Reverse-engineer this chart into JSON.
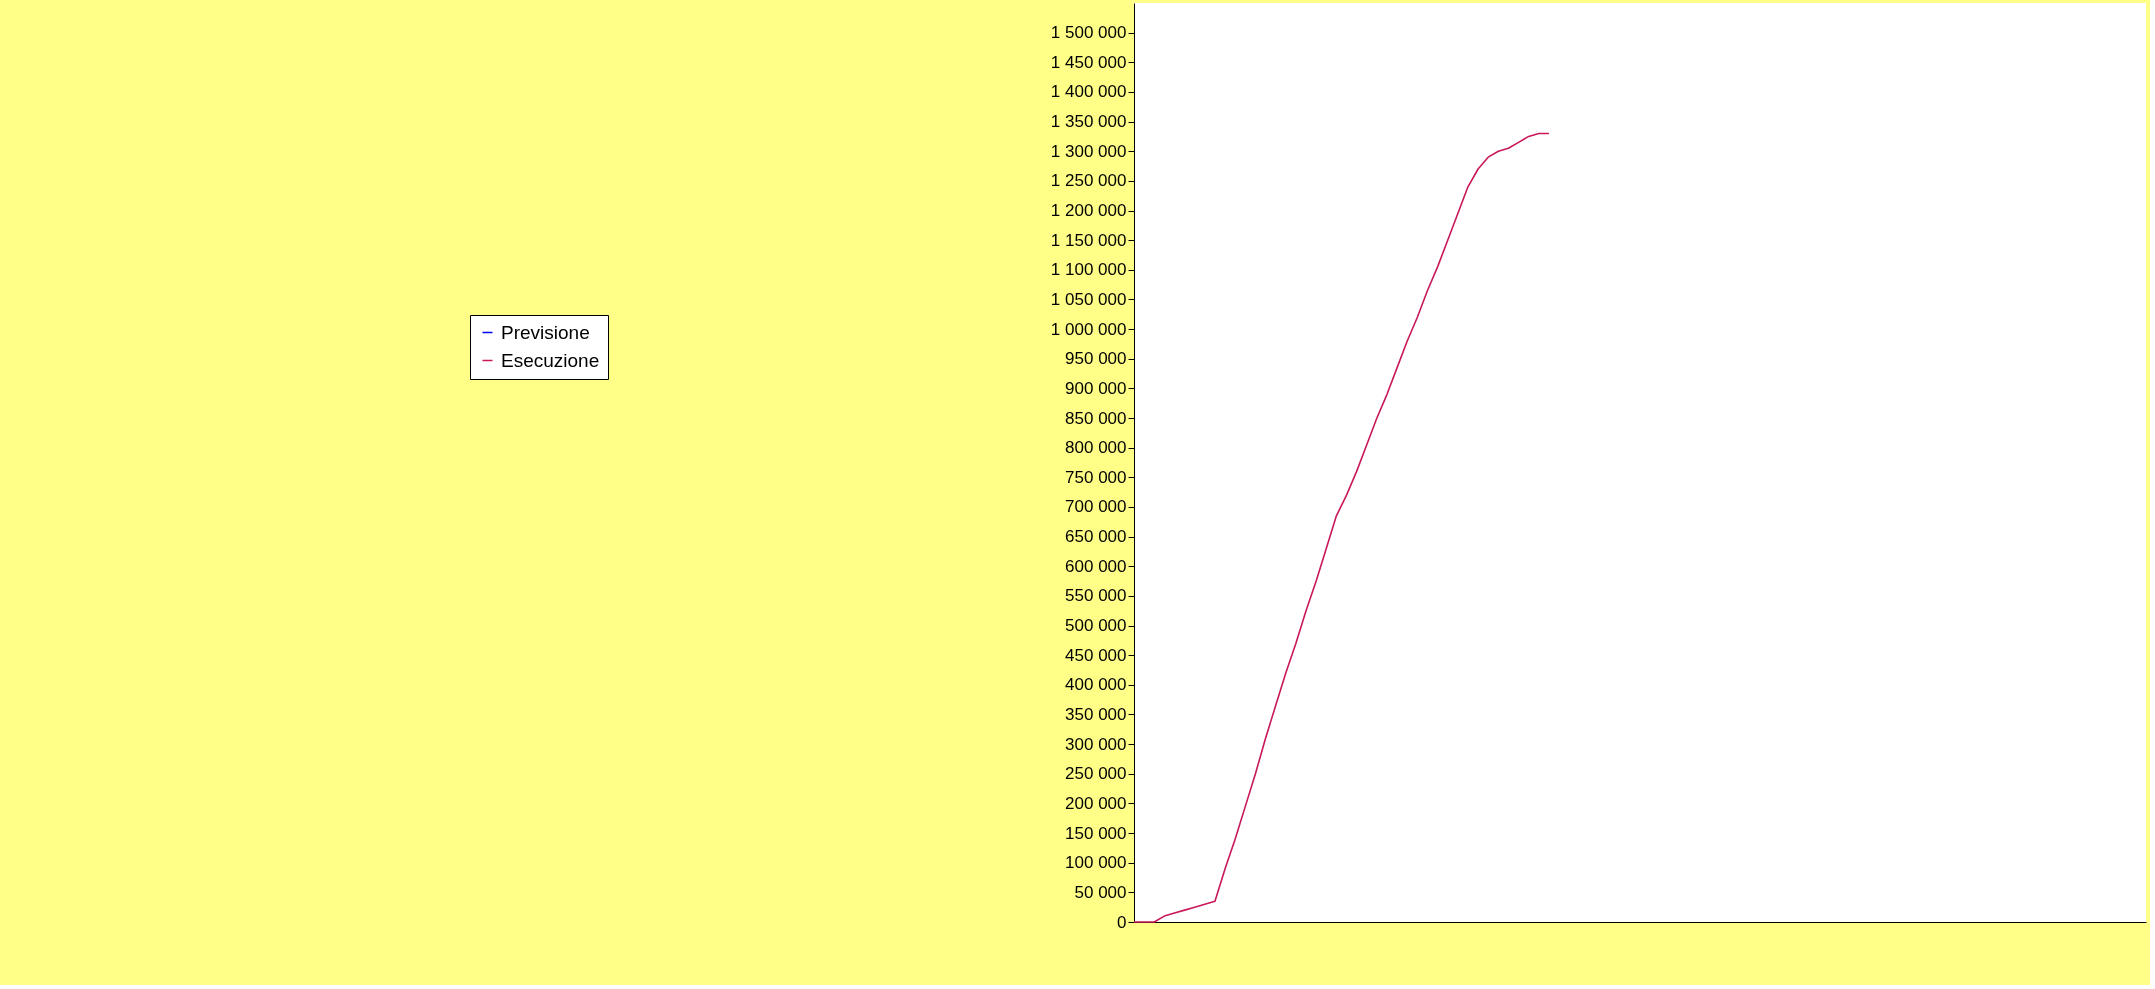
{
  "chart_data": {
    "type": "line",
    "categories": [
      null,
      null,
      null,
      null,
      null,
      null,
      null,
      null,
      null,
      null,
      null,
      null,
      null,
      null,
      null,
      null,
      null,
      null,
      null,
      null,
      null,
      null,
      null,
      null,
      null,
      null,
      null,
      null,
      null,
      null,
      null,
      null,
      null,
      null,
      null,
      null,
      null,
      null,
      null,
      null,
      null,
      null,
      null,
      null,
      null,
      null,
      null,
      null,
      null,
      null,
      null,
      null,
      null,
      null,
      null,
      null,
      null,
      null,
      null,
      null,
      null,
      null,
      null,
      null,
      null,
      null,
      null,
      null,
      null,
      null,
      null,
      null,
      null,
      null,
      null,
      null,
      null,
      null,
      null,
      null,
      null,
      null,
      null,
      null,
      null,
      null,
      null,
      null,
      null,
      null,
      null,
      null,
      null,
      null,
      null,
      null,
      null,
      null,
      null,
      null,
      null
    ],
    "series": [
      {
        "name": "Previsione",
        "color": "#0000ff",
        "values": [
          null,
          null,
          null,
          null,
          null,
          null,
          null,
          null,
          null,
          null,
          null,
          null,
          null,
          null,
          null,
          null,
          null,
          null,
          null,
          null,
          null,
          null,
          null,
          null,
          null,
          null,
          null,
          null,
          null,
          null,
          null,
          null,
          null,
          null,
          null,
          null,
          null,
          null,
          null,
          null,
          null,
          null,
          null,
          null,
          null,
          null,
          null,
          null,
          null,
          null,
          null,
          null,
          null,
          null,
          null,
          null,
          null,
          null,
          null,
          null,
          null,
          null,
          null,
          null,
          null,
          null,
          null,
          null,
          null,
          null,
          null,
          null,
          null,
          null,
          null,
          null,
          null,
          null,
          null,
          null,
          null,
          null,
          null,
          null,
          null,
          null,
          null,
          null,
          null,
          null,
          null,
          null,
          null,
          null,
          null,
          null,
          null,
          null,
          null,
          null,
          null
        ]
      },
      {
        "name": "Esecuzione",
        "color": "#c8185a",
        "values": [
          0,
          0,
          0,
          10000,
          15000,
          20000,
          25000,
          30000,
          35000,
          90000,
          140000,
          195000,
          250000,
          310000,
          365000,
          420000,
          470000,
          525000,
          575000,
          630000,
          685000,
          720000,
          760000,
          805000,
          850000,
          890000,
          935000,
          980000,
          1020000,
          1065000,
          1105000,
          1150000,
          1195000,
          1240000,
          1270000,
          1290000,
          1300000,
          1305000,
          1315000,
          1325000,
          1330000,
          1330000,
          null,
          null,
          null,
          null,
          null,
          null,
          null,
          null,
          null,
          null,
          null,
          null,
          null,
          null,
          null,
          null,
          null,
          null,
          null,
          null,
          null,
          null,
          null,
          null,
          null,
          null,
          null,
          null,
          null,
          null,
          null,
          null,
          null,
          null,
          null,
          null,
          null,
          null,
          null,
          null,
          null,
          null,
          null,
          null,
          null,
          null,
          null,
          null,
          null,
          null,
          null,
          null,
          null,
          null,
          null,
          null,
          null,
          null,
          null
        ]
      }
    ],
    "ylim": [
      0,
      1550000
    ],
    "yticks": [
      0,
      50000,
      100000,
      150000,
      200000,
      250000,
      300000,
      350000,
      400000,
      450000,
      500000,
      550000,
      600000,
      650000,
      700000,
      750000,
      800000,
      850000,
      900000,
      950000,
      1000000,
      1050000,
      1100000,
      1150000,
      1200000,
      1250000,
      1300000,
      1350000,
      1400000,
      1450000,
      1500000
    ],
    "tick_labels": "y",
    "legend": "left",
    "line_style": "solid"
  }
}
